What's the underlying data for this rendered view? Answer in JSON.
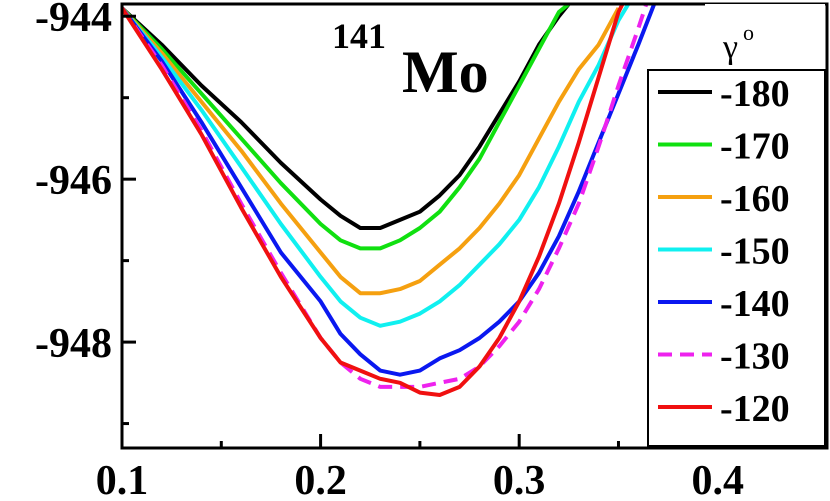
{
  "chart_data": {
    "type": "line",
    "title": "",
    "xlabel": "",
    "ylabel": "",
    "xlim": [
      0.1,
      0.455
    ],
    "ylim": [
      -949.3,
      -943.85
    ],
    "xticks": [
      0.1,
      0.2,
      0.3,
      0.4
    ],
    "xtick_labels": [
      "0.1",
      "0.2",
      "0.3",
      "0.4"
    ],
    "yticks": [
      -944,
      -946,
      -948
    ],
    "ytick_labels": [
      "-944",
      "-946",
      "-948"
    ],
    "annotation": {
      "mass": "141",
      "element": "Mo"
    },
    "legend": {
      "title": "γ",
      "title_superscript": "o",
      "placement": "right"
    },
    "series": [
      {
        "name": "-180",
        "color": "#000000",
        "dash": false,
        "points": [
          [
            0.1,
            -943.9
          ],
          [
            0.12,
            -944.35
          ],
          [
            0.14,
            -944.85
          ],
          [
            0.16,
            -945.3
          ],
          [
            0.18,
            -945.8
          ],
          [
            0.2,
            -946.25
          ],
          [
            0.21,
            -946.45
          ],
          [
            0.22,
            -946.6
          ],
          [
            0.23,
            -946.6
          ],
          [
            0.24,
            -946.5
          ],
          [
            0.25,
            -946.4
          ],
          [
            0.26,
            -946.2
          ],
          [
            0.27,
            -945.95
          ],
          [
            0.28,
            -945.6
          ],
          [
            0.29,
            -945.2
          ],
          [
            0.3,
            -944.8
          ],
          [
            0.31,
            -944.35
          ],
          [
            0.32,
            -944.0
          ],
          [
            0.325,
            -943.85
          ]
        ]
      },
      {
        "name": "-170",
        "color": "#10e010",
        "dash": false,
        "points": [
          [
            0.1,
            -943.9
          ],
          [
            0.12,
            -944.4
          ],
          [
            0.14,
            -944.95
          ],
          [
            0.16,
            -945.5
          ],
          [
            0.18,
            -946.05
          ],
          [
            0.2,
            -946.55
          ],
          [
            0.21,
            -946.75
          ],
          [
            0.22,
            -946.85
          ],
          [
            0.23,
            -946.85
          ],
          [
            0.24,
            -946.75
          ],
          [
            0.25,
            -946.6
          ],
          [
            0.26,
            -946.4
          ],
          [
            0.27,
            -946.1
          ],
          [
            0.28,
            -945.75
          ],
          [
            0.29,
            -945.3
          ],
          [
            0.3,
            -944.85
          ],
          [
            0.31,
            -944.4
          ],
          [
            0.32,
            -943.95
          ],
          [
            0.325,
            -943.85
          ]
        ]
      },
      {
        "name": "-160",
        "color": "#f5a010",
        "dash": false,
        "points": [
          [
            0.1,
            -943.9
          ],
          [
            0.12,
            -944.45
          ],
          [
            0.14,
            -945.05
          ],
          [
            0.16,
            -945.65
          ],
          [
            0.18,
            -946.3
          ],
          [
            0.2,
            -946.9
          ],
          [
            0.21,
            -947.2
          ],
          [
            0.22,
            -947.4
          ],
          [
            0.23,
            -947.4
          ],
          [
            0.24,
            -947.35
          ],
          [
            0.25,
            -947.25
          ],
          [
            0.26,
            -947.05
          ],
          [
            0.27,
            -946.85
          ],
          [
            0.28,
            -946.6
          ],
          [
            0.29,
            -946.3
          ],
          [
            0.3,
            -945.95
          ],
          [
            0.31,
            -945.5
          ],
          [
            0.32,
            -945.05
          ],
          [
            0.33,
            -944.65
          ],
          [
            0.34,
            -944.35
          ],
          [
            0.35,
            -943.9
          ]
        ]
      },
      {
        "name": "-150",
        "color": "#10f0f0",
        "dash": false,
        "points": [
          [
            0.1,
            -943.9
          ],
          [
            0.12,
            -944.5
          ],
          [
            0.14,
            -945.15
          ],
          [
            0.16,
            -945.85
          ],
          [
            0.18,
            -946.55
          ],
          [
            0.2,
            -947.2
          ],
          [
            0.21,
            -947.5
          ],
          [
            0.22,
            -947.7
          ],
          [
            0.23,
            -947.8
          ],
          [
            0.24,
            -947.75
          ],
          [
            0.25,
            -947.65
          ],
          [
            0.26,
            -947.5
          ],
          [
            0.27,
            -947.3
          ],
          [
            0.28,
            -947.05
          ],
          [
            0.29,
            -946.8
          ],
          [
            0.3,
            -946.5
          ],
          [
            0.31,
            -946.1
          ],
          [
            0.32,
            -945.6
          ],
          [
            0.33,
            -945.05
          ],
          [
            0.34,
            -944.6
          ],
          [
            0.35,
            -944.05
          ],
          [
            0.355,
            -943.85
          ]
        ]
      },
      {
        "name": "-140",
        "color": "#0a18f0",
        "dash": false,
        "points": [
          [
            0.1,
            -943.9
          ],
          [
            0.12,
            -944.55
          ],
          [
            0.14,
            -945.3
          ],
          [
            0.16,
            -946.1
          ],
          [
            0.18,
            -946.9
          ],
          [
            0.2,
            -947.5
          ],
          [
            0.21,
            -947.9
          ],
          [
            0.22,
            -948.15
          ],
          [
            0.23,
            -948.35
          ],
          [
            0.24,
            -948.4
          ],
          [
            0.25,
            -948.35
          ],
          [
            0.26,
            -948.2
          ],
          [
            0.27,
            -948.1
          ],
          [
            0.28,
            -947.95
          ],
          [
            0.29,
            -947.75
          ],
          [
            0.3,
            -947.5
          ],
          [
            0.31,
            -947.15
          ],
          [
            0.32,
            -946.7
          ],
          [
            0.33,
            -946.15
          ],
          [
            0.34,
            -945.55
          ],
          [
            0.35,
            -944.95
          ],
          [
            0.36,
            -944.35
          ],
          [
            0.368,
            -943.85
          ]
        ]
      },
      {
        "name": "-130",
        "color": "#ee22ee",
        "dash": true,
        "points": [
          [
            0.1,
            -943.9
          ],
          [
            0.12,
            -944.6
          ],
          [
            0.14,
            -945.4
          ],
          [
            0.16,
            -946.3
          ],
          [
            0.18,
            -947.15
          ],
          [
            0.2,
            -947.95
          ],
          [
            0.21,
            -948.25
          ],
          [
            0.22,
            -948.45
          ],
          [
            0.23,
            -948.55
          ],
          [
            0.24,
            -948.55
          ],
          [
            0.25,
            -948.55
          ],
          [
            0.26,
            -948.5
          ],
          [
            0.27,
            -948.45
          ],
          [
            0.28,
            -948.3
          ],
          [
            0.29,
            -948.05
          ],
          [
            0.3,
            -947.75
          ],
          [
            0.31,
            -947.35
          ],
          [
            0.32,
            -946.85
          ],
          [
            0.33,
            -946.3
          ],
          [
            0.34,
            -945.6
          ],
          [
            0.35,
            -944.85
          ],
          [
            0.36,
            -944.15
          ],
          [
            0.364,
            -943.85
          ]
        ]
      },
      {
        "name": "-120",
        "color": "#f01010",
        "dash": false,
        "points": [
          [
            0.1,
            -943.9
          ],
          [
            0.12,
            -944.65
          ],
          [
            0.14,
            -945.45
          ],
          [
            0.16,
            -946.35
          ],
          [
            0.18,
            -947.2
          ],
          [
            0.2,
            -947.95
          ],
          [
            0.21,
            -948.25
          ],
          [
            0.22,
            -948.35
          ],
          [
            0.23,
            -948.45
          ],
          [
            0.24,
            -948.5
          ],
          [
            0.25,
            -948.62
          ],
          [
            0.26,
            -948.65
          ],
          [
            0.27,
            -948.55
          ],
          [
            0.28,
            -948.3
          ],
          [
            0.29,
            -947.95
          ],
          [
            0.3,
            -947.5
          ],
          [
            0.31,
            -946.95
          ],
          [
            0.32,
            -946.3
          ],
          [
            0.33,
            -945.55
          ],
          [
            0.34,
            -944.75
          ],
          [
            0.35,
            -943.95
          ],
          [
            0.352,
            -943.85
          ]
        ]
      }
    ]
  }
}
